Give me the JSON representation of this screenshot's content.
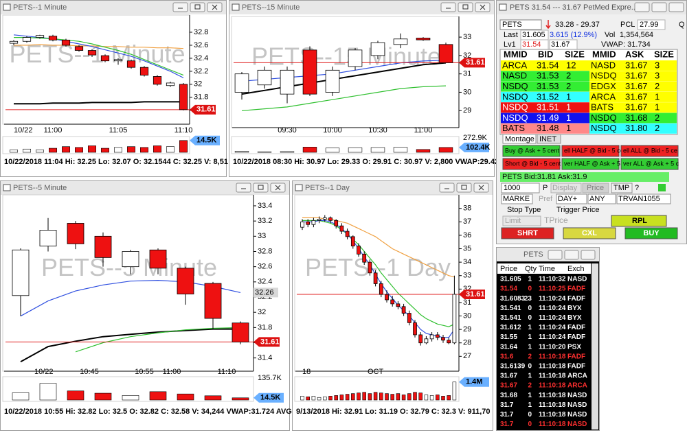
{
  "charts": [
    {
      "title": "PETS--1 Minute",
      "categories": [
        "10/22",
        null,
        null,
        "11:00",
        null,
        null,
        null,
        null,
        "11:05",
        null,
        null,
        null,
        null,
        "11:10"
      ],
      "candles": [
        [
          32.63,
          32.68,
          32.6,
          32.66
        ],
        [
          32.66,
          32.74,
          32.64,
          32.72
        ],
        [
          32.72,
          32.76,
          32.7,
          32.75
        ],
        [
          32.74,
          32.76,
          32.66,
          32.68
        ],
        [
          32.68,
          32.7,
          32.58,
          32.6
        ],
        [
          32.58,
          32.6,
          32.5,
          32.52
        ],
        [
          32.52,
          32.54,
          32.42,
          32.45
        ],
        [
          32.44,
          32.46,
          32.34,
          32.36
        ],
        [
          32.36,
          32.4,
          32.3,
          32.38
        ],
        [
          32.36,
          32.38,
          32.24,
          32.26
        ],
        [
          32.26,
          32.28,
          32.12,
          32.14
        ],
        [
          32.12,
          32.14,
          31.98,
          32.0
        ],
        [
          31.98,
          32.04,
          31.96,
          32.02
        ],
        [
          32.0,
          32.02,
          31.6,
          31.61
        ]
      ],
      "moving_averages": [
        {
          "color": "#f0a040",
          "values": [
            32.6,
            32.6,
            32.61,
            32.6,
            32.6,
            32.59,
            32.59,
            32.58,
            32.58,
            32.57,
            32.57,
            32.56,
            32.56,
            32.55
          ]
        },
        {
          "color": "#3050e0",
          "values": [
            32.76,
            32.74,
            32.72,
            32.7,
            32.66,
            32.62,
            32.58,
            32.53,
            32.48,
            32.43,
            32.36,
            32.28,
            32.2,
            32.1
          ]
        },
        {
          "color": "#30c030",
          "values": [
            32.72,
            32.72,
            32.71,
            32.7,
            32.68,
            32.66,
            32.62,
            32.57,
            32.52,
            32.46,
            32.38,
            32.3,
            32.22,
            32.14
          ]
        },
        {
          "color": "#000000",
          "values": [
            31.7,
            31.7,
            31.7,
            31.71,
            31.71,
            31.71,
            31.72,
            31.72,
            31.72,
            31.72,
            31.73,
            31.73,
            31.73,
            31.73
          ]
        }
      ],
      "ylim": [
        31.45,
        33.0
      ],
      "yticks": [
        31.6,
        31.8,
        32,
        32.2,
        32.4,
        32.6,
        32.8
      ],
      "last_price": 31.61,
      "volumes": [
        3,
        4,
        3,
        5,
        7,
        6,
        8,
        5,
        6,
        7,
        6,
        8,
        7,
        14.5
      ],
      "vlim": [
        0,
        16
      ],
      "volume_label": "14.5K",
      "status": "10/22/2018 11:04  Hi: 32.25  Lo: 32.07  O: 32.1544  C: 32.25  V: 8,51"
    },
    {
      "title": "PETS--15 Minute",
      "categories": [
        null,
        null,
        "09:30",
        null,
        "10:00",
        null,
        "10:30",
        null,
        "11:00",
        null
      ],
      "candles": [
        [
          30.0,
          31.1,
          29.6,
          31.0
        ],
        [
          30.4,
          31.4,
          30.2,
          31.2
        ],
        [
          29.9,
          31.4,
          29.4,
          31.2
        ],
        [
          32.3,
          32.5,
          29.8,
          29.9
        ],
        [
          30.0,
          31.4,
          29.8,
          31.2
        ],
        [
          31.4,
          32.4,
          31.2,
          32.3
        ],
        [
          32.0,
          32.8,
          31.8,
          32.7
        ],
        [
          32.6,
          33.2,
          32.4,
          32.9
        ],
        [
          32.95,
          33.0,
          32.8,
          32.85
        ],
        [
          32.6,
          32.7,
          31.6,
          31.61
        ]
      ],
      "moving_averages": [
        {
          "color": "#000000",
          "values": [
            29.9,
            30.1,
            30.3,
            30.5,
            30.7,
            30.9,
            31.1,
            31.3,
            31.5,
            31.6
          ]
        },
        {
          "color": "#3050e0",
          "values": [
            30.6,
            30.7,
            30.8,
            30.9,
            31.0,
            31.2,
            31.4,
            31.6,
            31.7,
            31.75
          ]
        },
        {
          "color": "#30c030",
          "values": [
            29.0,
            29.1,
            29.2,
            29.4,
            29.6,
            29.8,
            30.0,
            30.2,
            30.3,
            30.35
          ]
        }
      ],
      "ylim": [
        28.3,
        33.9
      ],
      "yticks": [
        29,
        30,
        31,
        32,
        33
      ],
      "last_price": 31.61,
      "volumes": [
        20,
        10,
        15,
        110,
        90,
        95,
        100,
        105,
        60,
        102.4
      ],
      "vlim": [
        0,
        272.9
      ],
      "volume_max_label": "272.9K",
      "volume_label": "102.4K",
      "status": "10/22/2018 08:30  Hi: 30.97  Lo: 29.33  O: 29.91  C: 30.97  V: 2,800  VWAP:29.42"
    },
    {
      "title": "PETS--5 Minute",
      "categories": [
        "10/22",
        null,
        "10:45",
        null,
        "10:55",
        "11:00",
        null,
        "11:10",
        null
      ],
      "candles": [
        [
          32.22,
          32.84,
          31.95,
          32.82
        ],
        [
          32.87,
          33.24,
          32.8,
          33.08
        ],
        [
          33.17,
          33.2,
          32.83,
          32.9
        ],
        [
          33.0,
          33.05,
          32.6,
          32.72
        ],
        [
          32.6,
          32.82,
          32.5,
          32.8
        ],
        [
          32.82,
          32.84,
          32.5,
          32.58
        ],
        [
          32.58,
          32.6,
          32.1,
          32.24
        ],
        [
          32.38,
          32.4,
          31.78,
          31.92
        ],
        [
          31.86,
          31.88,
          31.58,
          31.61
        ]
      ],
      "moving_averages": [
        {
          "color": "#3050e0",
          "values": [
            31.95,
            32.15,
            32.28,
            32.36,
            32.41,
            32.42,
            32.4,
            32.34,
            32.26
          ]
        },
        {
          "color": "#000000",
          "values": [
            31.35,
            31.55,
            31.62,
            31.68,
            31.71,
            31.74,
            31.76,
            31.78,
            31.78
          ]
        },
        {
          "color": "#30c030",
          "values": [
            null,
            null,
            31.48,
            31.6,
            31.68,
            31.73,
            31.77,
            31.79,
            31.8
          ]
        }
      ],
      "ylim": [
        31.28,
        33.49
      ],
      "yticks": [
        31.4,
        31.6,
        31.8,
        32,
        32.2,
        32.4,
        32.6,
        32.8,
        33,
        33.2,
        33.4
      ],
      "last_price": 31.61,
      "cursor_price": 32.26,
      "volumes": [
        48,
        110,
        60,
        45,
        30,
        55,
        40,
        28,
        14.5
      ],
      "vlim": [
        0,
        135.7
      ],
      "volume_max_label": "135.7K",
      "volume_label": "14.5K",
      "status": "10/22/2018 10:55  Hi: 32.82  Lo: 32.5  O: 32.82  C: 32.58  V: 34,244  VWAP:31.724  AVG"
    },
    {
      "title": "PETS--1 Day",
      "categories": [
        "18",
        null,
        null,
        null,
        null,
        null,
        null,
        null,
        null,
        null,
        null,
        null,
        null,
        "OCT",
        null,
        null,
        null,
        null,
        null,
        null,
        null,
        null,
        null,
        null,
        null,
        null,
        null,
        null
      ],
      "candles": [
        [
          36.6,
          37.2,
          36.4,
          37.0
        ],
        [
          37.0,
          37.2,
          36.6,
          36.8
        ],
        [
          36.8,
          37.3,
          36.6,
          37.1
        ],
        [
          37.1,
          37.4,
          36.9,
          37.2
        ],
        [
          37.2,
          37.5,
          37.0,
          37.3
        ],
        [
          37.3,
          37.4,
          36.9,
          37.1
        ],
        [
          37.1,
          37.2,
          36.5,
          36.7
        ],
        [
          36.7,
          36.9,
          36.1,
          36.3
        ],
        [
          36.3,
          36.5,
          35.7,
          35.9
        ],
        [
          35.9,
          36.0,
          35.0,
          35.2
        ],
        [
          35.2,
          35.4,
          34.4,
          34.6
        ],
        [
          34.6,
          34.8,
          33.8,
          34.0
        ],
        [
          34.0,
          34.2,
          33.0,
          33.2
        ],
        [
          33.2,
          33.4,
          32.2,
          32.4
        ],
        [
          32.4,
          32.6,
          31.4,
          31.6
        ],
        [
          31.6,
          31.9,
          31.0,
          31.2
        ],
        [
          31.2,
          31.5,
          30.7,
          30.9
        ],
        [
          30.9,
          31.1,
          30.5,
          30.7
        ],
        [
          30.7,
          30.9,
          30.0,
          30.2
        ],
        [
          30.2,
          30.4,
          29.3,
          29.5
        ],
        [
          29.5,
          29.7,
          28.4,
          28.6
        ],
        [
          28.6,
          28.8,
          27.8,
          28.0
        ],
        [
          28.0,
          28.5,
          27.9,
          28.3
        ],
        [
          28.3,
          28.8,
          28.1,
          28.6
        ],
        [
          28.6,
          28.8,
          28.2,
          28.4
        ],
        [
          28.4,
          28.6,
          28.0,
          28.2
        ],
        [
          28.2,
          28.4,
          27.9,
          28.0
        ],
        [
          28.0,
          33.0,
          27.9,
          31.61
        ]
      ],
      "moving_averages": [
        {
          "color": "#f0a040",
          "values": [
            37.3,
            37.3,
            37.3,
            37.3,
            37.2,
            37.2,
            37.1,
            37.0,
            36.9,
            36.7,
            36.5,
            36.3,
            36.1,
            35.9,
            35.6,
            35.3,
            35.0,
            34.8,
            34.6,
            34.4,
            34.2,
            34.0,
            33.8,
            33.6,
            33.4,
            33.2,
            33.0,
            32.9
          ]
        },
        {
          "color": "#30c030",
          "values": [
            37.1,
            37.1,
            37.1,
            37.1,
            37.0,
            36.9,
            36.7,
            36.4,
            36.1,
            35.7,
            35.3,
            34.8,
            34.3,
            33.8,
            33.2,
            32.7,
            32.2,
            31.7,
            31.3,
            30.9,
            30.5,
            30.1,
            29.8,
            29.6,
            29.4,
            29.3,
            29.2,
            29.4
          ]
        },
        {
          "color": "#3050e0",
          "values": [
            37.0,
            37.0,
            37.0,
            37.1,
            37.1,
            37.0,
            36.8,
            36.5,
            36.1,
            35.6,
            35.0,
            34.4,
            33.8,
            33.1,
            32.4,
            31.8,
            31.3,
            30.8,
            30.4,
            30.0,
            29.5,
            29.0,
            28.7,
            28.6,
            28.5,
            28.4,
            28.4,
            29.0
          ]
        }
      ],
      "ylim": [
        26.2,
        38.7
      ],
      "yticks": [
        27,
        28,
        29,
        30,
        31,
        32,
        33,
        34,
        35,
        36,
        37,
        38
      ],
      "last_price": 31.61,
      "volumes": [
        0.3,
        0.25,
        0.3,
        0.2,
        0.25,
        0.3,
        0.35,
        0.4,
        0.45,
        0.5,
        0.55,
        0.6,
        0.5,
        0.6,
        0.55,
        0.5,
        0.45,
        0.5,
        0.4,
        0.5,
        0.6,
        0.55,
        0.4,
        0.35,
        0.4,
        0.3,
        0.35,
        1.4
      ],
      "vlim": [
        0,
        1.6
      ],
      "volume_label": "1.4M",
      "status": "9/13/2018  Hi: 32.91  Lo: 31.19  O: 32.79  C: 32.3  V: 911,70"
    }
  ],
  "level2": {
    "title": "PETS   31.54 --- 31.67   PetMed Expre...",
    "symbol": "PETS",
    "range": "33.28 - 29.37",
    "pcl_label": "PCL",
    "pcl": "27.99",
    "q": "Q",
    "last_label": "Last",
    "last": "31.605",
    "change": "3.615 (12.9%)",
    "vol_label": "Vol",
    "volume": "1,354,564",
    "lv1_label": "Lv1",
    "lv1_bid": "31.54",
    "lv1_ask": "31.67",
    "vwap": "VWAP: 31.734",
    "headers": [
      "MMID",
      "BID",
      "SIZE",
      "MMID",
      "ASK",
      "SIZE"
    ],
    "bids": [
      {
        "mmid": "ARCA",
        "price": "31.54",
        "size": "12",
        "color": "#ffff00"
      },
      {
        "mmid": "NASD",
        "price": "31.53",
        "size": "2",
        "color": "#33ee33"
      },
      {
        "mmid": "NSDQ",
        "price": "31.53",
        "size": "2",
        "color": "#33ee33"
      },
      {
        "mmid": "NSDQ",
        "price": "31.52",
        "size": "1",
        "color": "#33ffff"
      },
      {
        "mmid": "NSDQ",
        "price": "31.51",
        "size": "1",
        "color": "#ee1111",
        "text_color": "#ffffff"
      },
      {
        "mmid": "NSDQ",
        "price": "31.49",
        "size": "1",
        "color": "#1111ee",
        "text_color": "#ffffff"
      },
      {
        "mmid": "BATS",
        "price": "31.48",
        "size": "1",
        "color": "#ff8888"
      }
    ],
    "asks": [
      {
        "mmid": "NASD",
        "price": "31.67",
        "size": "3",
        "color": "#ffff00"
      },
      {
        "mmid": "NSDQ",
        "price": "31.67",
        "size": "3",
        "color": "#ffff00"
      },
      {
        "mmid": "EDGX",
        "price": "31.67",
        "size": "2",
        "color": "#ffff00"
      },
      {
        "mmid": "ARCA",
        "price": "31.67",
        "size": "1",
        "color": "#ffff00"
      },
      {
        "mmid": "BATS",
        "price": "31.67",
        "size": "1",
        "color": "#ffff00"
      },
      {
        "mmid": "NSDQ",
        "price": "31.68",
        "size": "2",
        "color": "#33ee33"
      },
      {
        "mmid": "NSDQ",
        "price": "31.80",
        "size": "2",
        "color": "#33ffff"
      }
    ],
    "tabs": [
      "Montage",
      "INET"
    ],
    "buttons": [
      {
        "label": "Buy @ Ask + 5 cent",
        "color": "#33cc33"
      },
      {
        "label": "ell HALF @ Bid - 5 ce",
        "color": "#ee2222"
      },
      {
        "label": "ell ALL @ Bid - 5 ce",
        "color": "#ee2222"
      },
      {
        "label": "Short @ Bid - 5 cent",
        "color": "#ee2222"
      },
      {
        "label": "ver HALF @ Ask + 5 c",
        "color": "#33cc33"
      },
      {
        "label": "ver ALL @ Ask + 5 c",
        "color": "#33cc33"
      }
    ],
    "quote": "PETS Bid:31.81 Ask:31.9",
    "shares": "1000",
    "p": "P",
    "display": "Display",
    "price": "Price",
    "tmp": "TMP",
    "help": "?",
    "order_type": "MARKE",
    "pref": "Pref",
    "tif": "DAY+",
    "any": "ANY",
    "route": "TRVAN1055",
    "stop_type": "Stop Type",
    "trigger_price": "Trigger Price",
    "limit": "Limit",
    "tprice": "TPrice",
    "rpl": "RPL",
    "actions": [
      {
        "label": "SHRT",
        "color": "#dd2222"
      },
      {
        "label": "CXL",
        "color": "#d8d840"
      },
      {
        "label": "BUY",
        "color": "#22bb22"
      }
    ]
  },
  "time_sales": {
    "title": "PETS",
    "headers": [
      "Price",
      "Qty",
      "Time",
      "Exch"
    ],
    "rows": [
      {
        "cells": [
          "31.605",
          "1",
          "11:10:32",
          "NASD"
        ],
        "color": "#ffffff"
      },
      {
        "cells": [
          "31.54",
          "0",
          "11:10:25",
          "FADF"
        ],
        "color": "#ff3030"
      },
      {
        "cells": [
          "31.6083",
          "23",
          "11:10:24",
          "FADF"
        ],
        "color": "#ffffff"
      },
      {
        "cells": [
          "31.541",
          "0",
          "11:10:24",
          "BYX"
        ],
        "color": "#ffffff"
      },
      {
        "cells": [
          "31.541",
          "0",
          "11:10:24",
          "BYX"
        ],
        "color": "#ffffff"
      },
      {
        "cells": [
          "31.612",
          "1",
          "11:10:24",
          "FADF"
        ],
        "color": "#ffffff"
      },
      {
        "cells": [
          "31.55",
          "1",
          "11:10:24",
          "FADF"
        ],
        "color": "#ffffff"
      },
      {
        "cells": [
          "31.64",
          "1",
          "11:10:20",
          "PSX"
        ],
        "color": "#ffffff"
      },
      {
        "cells": [
          "31.6",
          "2",
          "11:10:18",
          "FADF"
        ],
        "color": "#ff3030"
      },
      {
        "cells": [
          "31.6139",
          "0",
          "11:10:18",
          "FADF"
        ],
        "color": "#ffffff"
      },
      {
        "cells": [
          "31.67",
          "1",
          "11:10:18",
          "ARCA"
        ],
        "color": "#ffffff"
      },
      {
        "cells": [
          "31.67",
          "2",
          "11:10:18",
          "ARCA"
        ],
        "color": "#ff3030"
      },
      {
        "cells": [
          "31.68",
          "1",
          "11:10:18",
          "NASD"
        ],
        "color": "#ffffff"
      },
      {
        "cells": [
          "31.7",
          "1",
          "11:10:18",
          "NASD"
        ],
        "color": "#ffffff"
      },
      {
        "cells": [
          "31.7",
          "0",
          "11:10:18",
          "NASD"
        ],
        "color": "#ffffff"
      },
      {
        "cells": [
          "31.7",
          "0",
          "11:10:18",
          "NASD"
        ],
        "color": "#ff3030"
      }
    ]
  }
}
